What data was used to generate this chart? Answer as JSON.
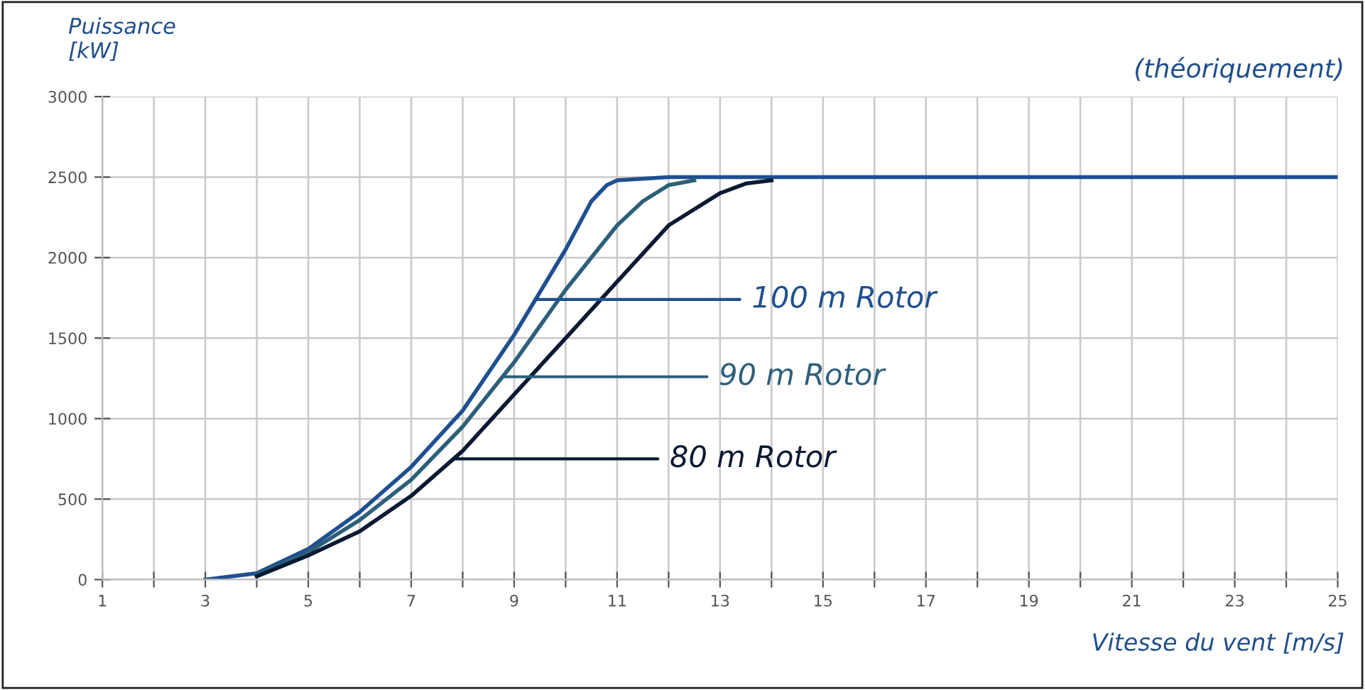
{
  "chart_data": {
    "type": "line",
    "ylabel": "Puissance\n[kW]",
    "xlabel": "Vitesse du vent [m/s]",
    "annotations": [
      "(théoriquement)"
    ],
    "xlim": [
      1,
      25
    ],
    "ylim": [
      0,
      3000
    ],
    "xticks": [
      1,
      {
        "value": 2,
        "label": null
      },
      3,
      {
        "value": 4,
        "label": null
      },
      5,
      {
        "value": 6,
        "label": null
      },
      7,
      {
        "value": 8,
        "label": null
      },
      9,
      {
        "value": 10,
        "label": null
      },
      11,
      {
        "value": 12,
        "label": null
      },
      13,
      {
        "value": 14,
        "label": null
      },
      15,
      {
        "value": 16,
        "label": null
      },
      17,
      {
        "value": 18,
        "label": null
      },
      19,
      {
        "value": 20,
        "label": null
      },
      21,
      {
        "value": 22,
        "label": null
      },
      23,
      {
        "value": 24,
        "label": null
      },
      25
    ],
    "yticks": [
      0,
      500,
      1000,
      1500,
      2000,
      2500,
      3000
    ],
    "grid": true,
    "legend": false,
    "marker": "none",
    "line_style": "solid",
    "series": [
      {
        "name": "100 m Rotor",
        "color": "#1f4f8f",
        "x": [
          3,
          4,
          5,
          6,
          7,
          8,
          9,
          10,
          10.5,
          10.8,
          11,
          12,
          15,
          20,
          25
        ],
        "values": [
          0,
          40,
          190,
          420,
          700,
          1050,
          1520,
          2050,
          2350,
          2450,
          2480,
          2500,
          2500,
          2500,
          2500
        ]
      },
      {
        "name": "90 m Rotor",
        "color": "#2c5f7a",
        "x": [
          4,
          5,
          6,
          7,
          8,
          9,
          10,
          11,
          11.5,
          12,
          12.5
        ],
        "values": [
          30,
          170,
          370,
          620,
          950,
          1350,
          1800,
          2200,
          2350,
          2450,
          2480
        ]
      },
      {
        "name": "80 m Rotor",
        "color": "#0a1a33",
        "x": [
          4,
          5,
          6,
          7,
          8,
          9,
          10,
          11,
          12,
          13,
          13.5,
          14
        ],
        "values": [
          20,
          150,
          300,
          520,
          800,
          1150,
          1500,
          1850,
          2200,
          2400,
          2460,
          2480
        ]
      }
    ]
  }
}
